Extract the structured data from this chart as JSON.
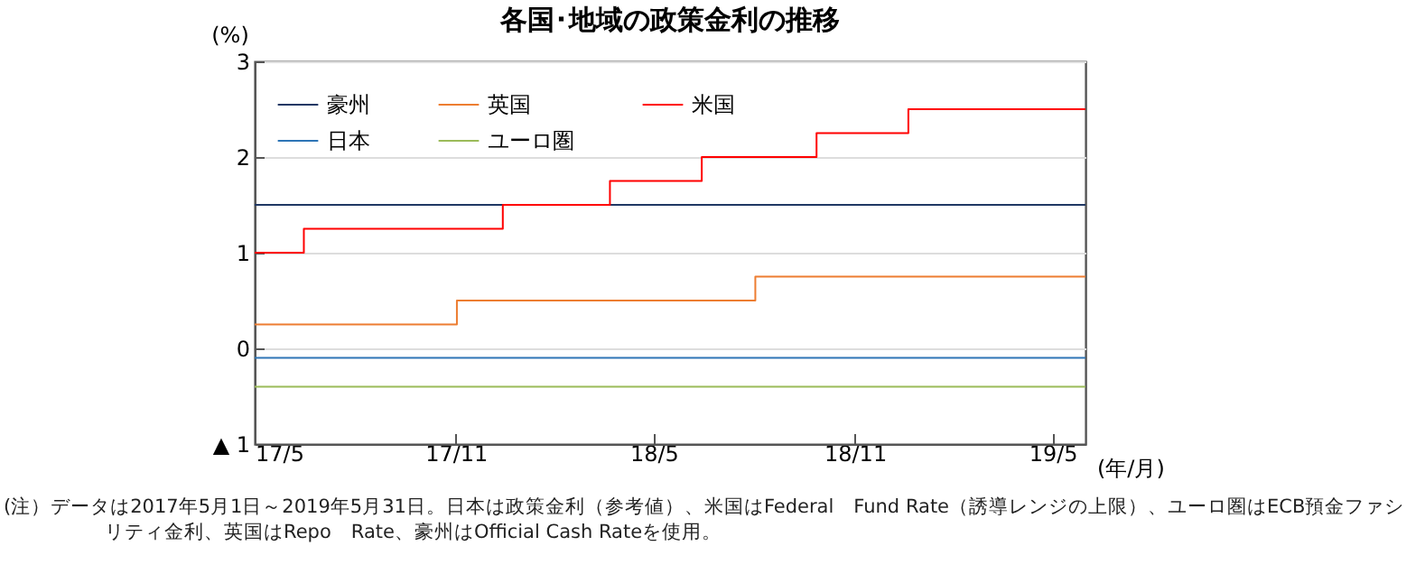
{
  "chart_data": {
    "type": "step",
    "title": "各国･地域の政策金利の推移",
    "ylabel": "(%)",
    "xlabel": "(年/月)",
    "xlim": [
      "2017-05-01",
      "2019-05-31"
    ],
    "xticks": [
      {
        "value": "2017-05-01",
        "label": "17/5"
      },
      {
        "value": "2017-11-01",
        "label": "17/11"
      },
      {
        "value": "2018-05-01",
        "label": "18/5"
      },
      {
        "value": "2018-11-01",
        "label": "18/11"
      },
      {
        "value": "2019-05-01",
        "label": "19/5"
      }
    ],
    "ylim": [
      -1,
      3
    ],
    "yticks": [
      {
        "value": -1,
        "label": "▲ 1"
      },
      0,
      1,
      2,
      3
    ],
    "grid": "y",
    "legend": "top left",
    "line_style": "solid",
    "marker": "none",
    "series": [
      {
        "name": "豪州",
        "color": "#1f3864",
        "x": [
          "2017-05-01",
          "2019-05-31"
        ],
        "values": [
          1.5,
          1.5
        ]
      },
      {
        "name": "英国",
        "color": "#ed7d31",
        "x": [
          "2017-05-01",
          "2017-11-02",
          "2018-08-02",
          "2019-05-31"
        ],
        "values": [
          0.25,
          0.5,
          0.75,
          0.75
        ]
      },
      {
        "name": "米国",
        "color": "#ff0000",
        "x": [
          "2017-05-01",
          "2017-06-15",
          "2017-12-14",
          "2018-03-22",
          "2018-06-14",
          "2018-09-27",
          "2018-12-20",
          "2019-05-31"
        ],
        "values": [
          1.0,
          1.25,
          1.5,
          1.75,
          2.0,
          2.25,
          2.5,
          2.5
        ]
      },
      {
        "name": "日本",
        "color": "#2e75b6",
        "x": [
          "2017-05-01",
          "2019-05-31"
        ],
        "values": [
          -0.1,
          -0.1
        ]
      },
      {
        "name": "ユーロ圏",
        "color": "#9bbb59",
        "x": [
          "2017-05-01",
          "2019-05-31"
        ],
        "values": [
          -0.4,
          -0.4
        ]
      }
    ],
    "annotations": [
      "(注）データは2017年5月1日～2019年5月31日。日本は政策金利（参考値）、米国はFederal　Fund Rate（誘導レンジの上限）、ユーロ圏はECB預金ファシリティ金利、英国はRepo　Rate、豪州はOfficial Cash Rateを使用。"
    ]
  }
}
